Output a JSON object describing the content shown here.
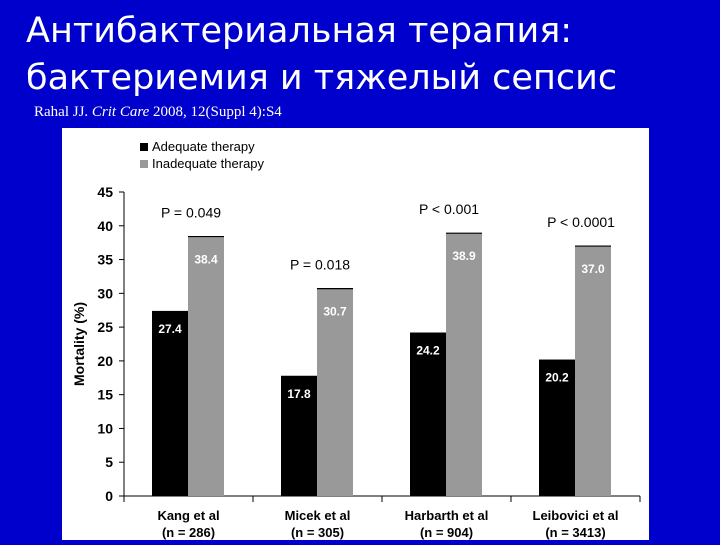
{
  "slide": {
    "title_line1": "Антибактериальная терапия:",
    "title_line2": "бактериемия и тяжелый сепсис",
    "citation_authors": "Rahal JJ.",
    "citation_journal": "Crit Care",
    "citation_rest": "2008, 12(Suppl 4):S4"
  },
  "colors": {
    "background": "#0000cc",
    "adequate": "#000000",
    "inadequate": "#999999"
  },
  "chart_data": {
    "type": "bar",
    "categories": [
      "Kang et al",
      "Micek et al",
      "Harbarth et al",
      "Leibovici et al"
    ],
    "n_labels": [
      "(n = 286)",
      "(n = 305)",
      "(n = 904)",
      "(n = 3413)"
    ],
    "series": [
      {
        "name": "Adequate therapy",
        "values": [
          27.4,
          17.8,
          24.2,
          20.2
        ],
        "labels": [
          "27.4",
          "17.8",
          "24.2",
          "20.2"
        ]
      },
      {
        "name": "Inadequate therapy",
        "values": [
          38.4,
          30.7,
          38.9,
          37.0
        ],
        "labels": [
          "38.4",
          "30.7",
          "38.9",
          "37.0"
        ]
      }
    ],
    "p_values": [
      "P = 0.049",
      "P = 0.018",
      "P < 0.001",
      "P < 0.0001"
    ],
    "ylabel": "Mortality (%)",
    "ylim": [
      0,
      45
    ],
    "yticks": [
      "0",
      "5",
      "10",
      "15",
      "20",
      "25",
      "30",
      "35",
      "40",
      "45"
    ],
    "legend_position": "top-left",
    "grid": false
  }
}
